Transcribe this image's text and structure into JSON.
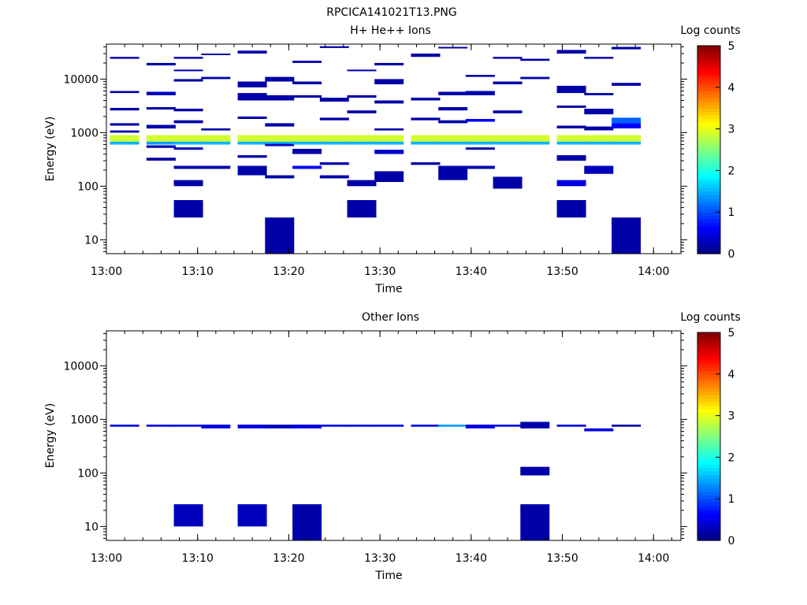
{
  "figure_title": "RPCICA141021T13.PNG",
  "colormap": [
    "#00007f",
    "#0000ff",
    "#0080ff",
    "#00ffff",
    "#80ff80",
    "#ffff00",
    "#ff8000",
    "#ff0000",
    "#7f0000"
  ],
  "chart_data": [
    {
      "type": "heatmap",
      "title": "H+ He++ Ions",
      "xlabel": "Time",
      "ylabel": "Energy (eV)",
      "y_scale": "log",
      "xlim": [
        "13:00",
        "14:03"
      ],
      "ylim": [
        5.5,
        45000
      ],
      "x_ticks": [
        "13:00",
        "13:10",
        "13:20",
        "13:30",
        "13:40",
        "13:50",
        "14:00"
      ],
      "y_ticks": [
        10,
        100,
        1000,
        10000
      ],
      "colorbar": {
        "label": "Log counts",
        "range": [
          0,
          5
        ],
        "ticks": [
          "0",
          "1",
          "2",
          "3",
          "4",
          "5"
        ]
      },
      "time_bins": [
        "13:02",
        "13:06",
        "13:09",
        "13:12",
        "13:16",
        "13:19",
        "13:22",
        "13:25",
        "13:28",
        "13:31",
        "13:35",
        "13:38",
        "13:41",
        "13:44",
        "13:47",
        "13:51",
        "13:54",
        "13:57"
      ],
      "cells": [
        [
          "13:02",
          680,
          900,
          2.9
        ],
        [
          "13:02",
          600,
          680,
          1.5
        ],
        [
          "13:02",
          24000,
          26000,
          0.2
        ],
        [
          "13:02",
          5500,
          6000,
          0.2
        ],
        [
          "13:02",
          2600,
          2900,
          0.2
        ],
        [
          "13:02",
          1350,
          1500,
          0.2
        ],
        [
          "13:02",
          1000,
          1100,
          0.2
        ],
        [
          "13:06",
          680,
          900,
          2.9
        ],
        [
          "13:06",
          600,
          680,
          1.4
        ],
        [
          "13:06",
          18000,
          20000,
          0.2
        ],
        [
          "13:06",
          5000,
          5800,
          0.3
        ],
        [
          "13:06",
          2700,
          3000,
          0.2
        ],
        [
          "13:06",
          1200,
          1400,
          0.2
        ],
        [
          "13:06",
          520,
          580,
          0.3
        ],
        [
          "13:06",
          300,
          340,
          0.2
        ],
        [
          "13:09",
          680,
          900,
          2.9
        ],
        [
          "13:09",
          600,
          680,
          1.5
        ],
        [
          "13:09",
          24000,
          26000,
          0.2
        ],
        [
          "13:09",
          14000,
          15000,
          0.2
        ],
        [
          "13:09",
          9000,
          10000,
          0.2
        ],
        [
          "13:09",
          2500,
          2800,
          0.2
        ],
        [
          "13:09",
          1500,
          1700,
          0.2
        ],
        [
          "13:09",
          480,
          530,
          0.3
        ],
        [
          "13:09",
          210,
          240,
          0.2
        ],
        [
          "13:09",
          100,
          130,
          0.2
        ],
        [
          "13:09",
          26,
          55,
          0.2
        ],
        [
          "13:12",
          680,
          900,
          2.9
        ],
        [
          "13:12",
          600,
          680,
          1.5
        ],
        [
          "13:12",
          28000,
          30000,
          0.2
        ],
        [
          "13:12",
          10000,
          11000,
          0.2
        ],
        [
          "13:12",
          1100,
          1200,
          0.2
        ],
        [
          "13:12",
          210,
          240,
          0.2
        ],
        [
          "13:16",
          680,
          900,
          2.9
        ],
        [
          "13:16",
          600,
          680,
          1.5
        ],
        [
          "13:16",
          30000,
          34000,
          0.2
        ],
        [
          "13:16",
          7000,
          9000,
          0.2
        ],
        [
          "13:16",
          4000,
          5500,
          0.2
        ],
        [
          "13:16",
          1800,
          2000,
          0.2
        ],
        [
          "13:16",
          340,
          380,
          0.2
        ],
        [
          "13:16",
          160,
          240,
          0.2
        ],
        [
          "13:19",
          680,
          900,
          2.9
        ],
        [
          "13:19",
          600,
          680,
          1.5
        ],
        [
          "13:19",
          9000,
          11000,
          0.2
        ],
        [
          "13:19",
          4000,
          5000,
          0.2
        ],
        [
          "13:19",
          1300,
          1500,
          0.2
        ],
        [
          "13:19",
          560,
          620,
          0.3
        ],
        [
          "13:19",
          140,
          160,
          0.2
        ],
        [
          "13:19",
          5.5,
          26,
          0.2
        ],
        [
          "13:22",
          680,
          900,
          2.9
        ],
        [
          "13:22",
          600,
          680,
          1.5
        ],
        [
          "13:22",
          20000,
          22000,
          0.2
        ],
        [
          "13:22",
          8000,
          9000,
          0.2
        ],
        [
          "13:22",
          4500,
          5000,
          0.2
        ],
        [
          "13:22",
          400,
          500,
          0.2
        ],
        [
          "13:22",
          210,
          240,
          0.6
        ],
        [
          "13:25",
          680,
          900,
          2.9
        ],
        [
          "13:25",
          600,
          680,
          1.5
        ],
        [
          "13:25",
          38000,
          41000,
          0.2
        ],
        [
          "13:25",
          3800,
          4500,
          0.2
        ],
        [
          "13:25",
          1700,
          1900,
          0.2
        ],
        [
          "13:25",
          250,
          280,
          0.2
        ],
        [
          "13:25",
          140,
          160,
          0.2
        ],
        [
          "13:28",
          680,
          900,
          2.9
        ],
        [
          "13:28",
          600,
          680,
          1.5
        ],
        [
          "13:28",
          14000,
          15000,
          0.2
        ],
        [
          "13:28",
          4500,
          5000,
          0.2
        ],
        [
          "13:28",
          2300,
          2600,
          0.2
        ],
        [
          "13:28",
          100,
          130,
          0.2
        ],
        [
          "13:28",
          26,
          55,
          0.2
        ],
        [
          "13:31",
          680,
          900,
          2.9
        ],
        [
          "13:31",
          600,
          680,
          1.5
        ],
        [
          "13:31",
          18000,
          20000,
          0.2
        ],
        [
          "13:31",
          8000,
          10000,
          0.2
        ],
        [
          "13:31",
          3500,
          4000,
          0.2
        ],
        [
          "13:31",
          1100,
          1200,
          0.2
        ],
        [
          "13:31",
          400,
          480,
          0.4
        ],
        [
          "13:31",
          120,
          190,
          0.2
        ],
        [
          "13:35",
          680,
          900,
          2.9
        ],
        [
          "13:35",
          600,
          680,
          1.5
        ],
        [
          "13:35",
          26000,
          30000,
          0.2
        ],
        [
          "13:35",
          4000,
          4500,
          0.2
        ],
        [
          "13:35",
          1700,
          1900,
          0.2
        ],
        [
          "13:35",
          250,
          280,
          0.2
        ],
        [
          "13:38",
          680,
          900,
          2.9
        ],
        [
          "13:38",
          600,
          680,
          1.5
        ],
        [
          "13:38",
          38000,
          40000,
          0.2
        ],
        [
          "13:38",
          5000,
          5800,
          0.2
        ],
        [
          "13:38",
          2600,
          3000,
          0.2
        ],
        [
          "13:38",
          1500,
          1700,
          0.2
        ],
        [
          "13:38",
          130,
          240,
          0.2
        ],
        [
          "13:41",
          680,
          900,
          2.9
        ],
        [
          "13:41",
          600,
          680,
          1.5
        ],
        [
          "13:41",
          11000,
          12000,
          0.2
        ],
        [
          "13:41",
          5000,
          6000,
          0.2
        ],
        [
          "13:41",
          1600,
          1800,
          0.6
        ],
        [
          "13:41",
          480,
          530,
          0.2
        ],
        [
          "13:41",
          210,
          240,
          0.2
        ],
        [
          "13:44",
          680,
          900,
          2.9
        ],
        [
          "13:44",
          600,
          680,
          1.5
        ],
        [
          "13:44",
          24000,
          26000,
          0.2
        ],
        [
          "13:44",
          8000,
          9000,
          0.2
        ],
        [
          "13:44",
          2300,
          2600,
          0.2
        ],
        [
          "13:44",
          90,
          150,
          0.2
        ],
        [
          "13:47",
          680,
          900,
          2.9
        ],
        [
          "13:47",
          600,
          680,
          1.5
        ],
        [
          "13:47",
          22000,
          24000,
          0.2
        ],
        [
          "13:47",
          10000,
          11000,
          0.2
        ],
        [
          "13:51",
          680,
          900,
          2.9
        ],
        [
          "13:51",
          600,
          680,
          1.5
        ],
        [
          "13:51",
          30000,
          35000,
          0.2
        ],
        [
          "13:51",
          5500,
          7500,
          0.2
        ],
        [
          "13:51",
          2900,
          3200,
          0.2
        ],
        [
          "13:51",
          1200,
          1350,
          0.2
        ],
        [
          "13:51",
          300,
          380,
          0.2
        ],
        [
          "13:51",
          100,
          130,
          0.5
        ],
        [
          "13:51",
          26,
          55,
          0.2
        ],
        [
          "13:54",
          680,
          900,
          2.9
        ],
        [
          "13:54",
          600,
          680,
          1.5
        ],
        [
          "13:54",
          24000,
          26000,
          0.2
        ],
        [
          "13:54",
          5000,
          5500,
          0.2
        ],
        [
          "13:54",
          2200,
          2800,
          0.2
        ],
        [
          "13:54",
          1100,
          1300,
          0.2
        ],
        [
          "13:54",
          170,
          240,
          0.3
        ],
        [
          "13:57",
          680,
          900,
          2.9
        ],
        [
          "13:57",
          600,
          680,
          1.5
        ],
        [
          "13:57",
          36000,
          40000,
          0.2
        ],
        [
          "13:57",
          7500,
          8500,
          0.2
        ],
        [
          "13:57",
          1500,
          1900,
          1.1
        ],
        [
          "13:57",
          1200,
          1500,
          0.6
        ],
        [
          "13:57",
          5.5,
          26,
          0.2
        ]
      ]
    },
    {
      "type": "heatmap",
      "title": "Other Ions",
      "xlabel": "Time",
      "ylabel": "Energy (eV)",
      "y_scale": "log",
      "xlim": [
        "13:00",
        "14:03"
      ],
      "ylim": [
        5.5,
        45000
      ],
      "x_ticks": [
        "13:00",
        "13:10",
        "13:20",
        "13:30",
        "13:40",
        "13:50",
        "14:00"
      ],
      "y_ticks": [
        10,
        100,
        1000,
        10000
      ],
      "colorbar": {
        "label": "Log counts",
        "range": [
          0,
          5
        ],
        "ticks": [
          "0",
          "1",
          "2",
          "3",
          "4",
          "5"
        ]
      },
      "time_bins": [
        "13:02",
        "13:06",
        "13:09",
        "13:12",
        "13:16",
        "13:19",
        "13:22",
        "13:25",
        "13:28",
        "13:31",
        "13:35",
        "13:38",
        "13:41",
        "13:44",
        "13:47",
        "13:51",
        "13:54",
        "13:57"
      ],
      "cells": [
        [
          "13:02",
          730,
          800,
          0.5
        ],
        [
          "13:06",
          730,
          800,
          0.5
        ],
        [
          "13:09",
          730,
          800,
          0.5
        ],
        [
          "13:09",
          10,
          26,
          0.3
        ],
        [
          "13:12",
          680,
          800,
          0.5
        ],
        [
          "13:16",
          680,
          800,
          0.5
        ],
        [
          "13:16",
          10,
          26,
          0.3
        ],
        [
          "13:19",
          680,
          800,
          0.3
        ],
        [
          "13:22",
          680,
          800,
          0.5
        ],
        [
          "13:22",
          5.5,
          26,
          0.2
        ],
        [
          "13:25",
          730,
          800,
          0.5
        ],
        [
          "13:28",
          730,
          800,
          0.5
        ],
        [
          "13:31",
          730,
          800,
          0.5
        ],
        [
          "13:35",
          730,
          800,
          0.5
        ],
        [
          "13:38",
          730,
          800,
          1.4
        ],
        [
          "13:41",
          680,
          800,
          0.5
        ],
        [
          "13:44",
          730,
          800,
          0.5
        ],
        [
          "13:47",
          680,
          900,
          0.2
        ],
        [
          "13:47",
          90,
          130,
          0.2
        ],
        [
          "13:47",
          5.5,
          26,
          0.2
        ],
        [
          "13:51",
          730,
          800,
          0.5
        ],
        [
          "13:54",
          600,
          680,
          0.5
        ],
        [
          "13:57",
          730,
          800,
          0.2
        ]
      ]
    }
  ]
}
